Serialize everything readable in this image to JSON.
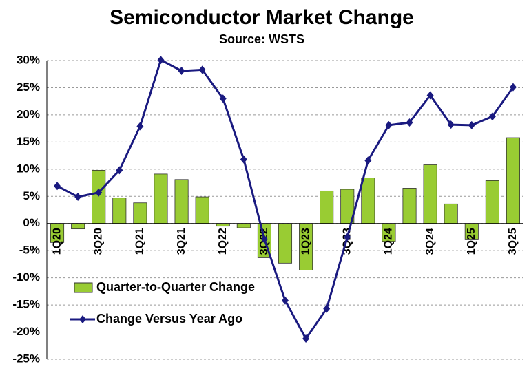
{
  "chart_data": {
    "type": "bar_line",
    "title": "Semiconductor Market Change",
    "subtitle": "Source: WSTS",
    "categories": [
      "1Q20",
      null,
      "3Q20",
      null,
      "1Q21",
      null,
      "3Q21",
      null,
      "1Q22",
      null,
      "3Q22",
      null,
      "1Q23",
      null,
      "3Q23",
      null,
      "1Q24",
      null,
      "3Q24",
      null,
      "1Q25",
      null,
      "3Q25"
    ],
    "series": [
      {
        "name": "Quarter-to-Quarter Change",
        "type": "bar",
        "color": "#99cc33",
        "values": [
          -3.5,
          -1.0,
          9.8,
          4.7,
          3.8,
          9.1,
          8.1,
          4.9,
          -0.5,
          -0.8,
          -6.3,
          -7.3,
          -8.6,
          6.0,
          6.3,
          8.4,
          -3.3,
          6.5,
          10.8,
          3.6,
          -3.0,
          7.9,
          15.8
        ]
      },
      {
        "name": "Change Versus Year Ago",
        "type": "line",
        "color": "#1a1a80",
        "values": [
          6.9,
          4.9,
          5.7,
          9.8,
          17.9,
          30.1,
          28.1,
          28.3,
          23.0,
          11.8,
          -2.9,
          -14.2,
          -21.2,
          -15.7,
          -2.5,
          11.6,
          18.1,
          18.6,
          23.6,
          18.2,
          18.1,
          19.7,
          25.1
        ]
      }
    ],
    "ylim": [
      -25,
      30
    ],
    "yticks": [
      {
        "value": -25,
        "label": "-25%"
      },
      {
        "value": -20,
        "label": "-20%"
      },
      {
        "value": -15,
        "label": "-15%"
      },
      {
        "value": -10,
        "label": "-10%"
      },
      {
        "value": -5,
        "label": "-5%"
      },
      {
        "value": 0,
        "label": "0%"
      },
      {
        "value": 5,
        "label": "5%"
      },
      {
        "value": 10,
        "label": "10%"
      },
      {
        "value": 15,
        "label": "15%"
      },
      {
        "value": 20,
        "label": "20%"
      },
      {
        "value": 25,
        "label": "25%"
      },
      {
        "value": 30,
        "label": "30%"
      }
    ],
    "grid": true,
    "legend": "lower left"
  }
}
